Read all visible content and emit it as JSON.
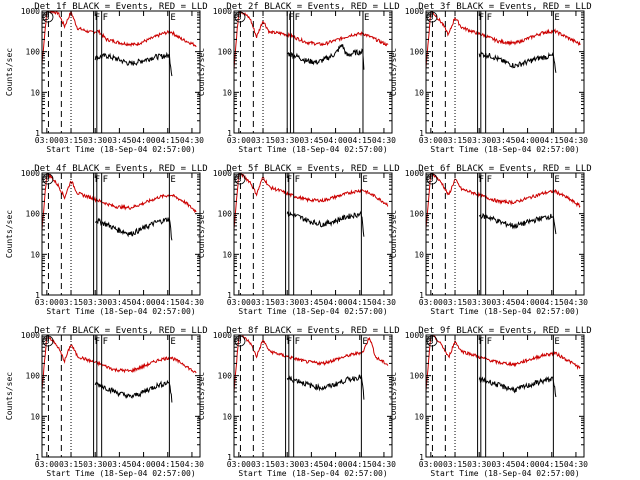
{
  "chart_data": {
    "type": "line",
    "y_scale": "log",
    "ylim": [
      1,
      1000
    ],
    "ylabel": "Counts/sec",
    "y_ticks": [
      "1",
      "10",
      "100",
      "1000"
    ],
    "x_ticks": [
      "03:00",
      "03:15",
      "03:30",
      "03:45",
      "04:00",
      "04:15",
      "04:30"
    ],
    "xlabel": "Start Time (18-Sep-04 02:57:00)",
    "x_range_minutes": [
      0,
      98
    ],
    "x_tick_minutes": [
      3,
      18,
      33,
      48,
      63,
      78,
      93
    ],
    "colors": {
      "events": "#000000",
      "lld": "#cc0000"
    },
    "series_note": "BLACK = Events, RED = LLD",
    "panels": [
      {
        "title": "Det 1f BLACK = Events, RED = LLD",
        "lld": [
          [
            0,
            50
          ],
          [
            3,
            1000
          ],
          [
            5,
            1000
          ],
          [
            10,
            900
          ],
          [
            14,
            420
          ],
          [
            18,
            950
          ],
          [
            22,
            380
          ],
          [
            30,
            300
          ],
          [
            35,
            320
          ],
          [
            40,
            200
          ],
          [
            50,
            160
          ],
          [
            58,
            150
          ],
          [
            65,
            190
          ],
          [
            75,
            280
          ],
          [
            80,
            310
          ],
          [
            86,
            210
          ],
          [
            96,
            140
          ]
        ],
        "events": [
          [
            33,
            70
          ],
          [
            40,
            80
          ],
          [
            47,
            65
          ],
          [
            55,
            50
          ],
          [
            62,
            60
          ],
          [
            70,
            75
          ],
          [
            79,
            80
          ],
          [
            80,
            40
          ],
          [
            81,
            20
          ]
        ],
        "marker_minutes": {
          "dash": [
            4,
            12
          ],
          "dot": 18,
          "solid": [
            32,
            34,
            37,
            79
          ]
        },
        "markers": [
          "S",
          "F",
          "F",
          "E"
        ]
      },
      {
        "title": "Det 2f BLACK = Events, RED = LLD",
        "lld": [
          [
            0,
            40
          ],
          [
            3,
            1000
          ],
          [
            5,
            950
          ],
          [
            10,
            650
          ],
          [
            14,
            230
          ],
          [
            18,
            580
          ],
          [
            22,
            300
          ],
          [
            30,
            280
          ],
          [
            35,
            250
          ],
          [
            45,
            170
          ],
          [
            55,
            150
          ],
          [
            63,
            190
          ],
          [
            73,
            260
          ],
          [
            80,
            280
          ],
          [
            88,
            200
          ],
          [
            96,
            140
          ]
        ],
        "events": [
          [
            33,
            90
          ],
          [
            38,
            80
          ],
          [
            45,
            60
          ],
          [
            52,
            55
          ],
          [
            58,
            70
          ],
          [
            63,
            90
          ],
          [
            67,
            150
          ],
          [
            70,
            80
          ],
          [
            75,
            95
          ],
          [
            80,
            100
          ],
          [
            81,
            20
          ]
        ],
        "marker_minutes": {
          "dash": [
            4,
            12
          ],
          "dot": 18,
          "solid": [
            33,
            35,
            37,
            80
          ]
        },
        "markers": [
          "S",
          "F",
          "F",
          "E"
        ]
      },
      {
        "title": "Det 3f BLACK = Events, RED = LLD",
        "lld": [
          [
            0,
            40
          ],
          [
            3,
            1000
          ],
          [
            5,
            850
          ],
          [
            10,
            500
          ],
          [
            14,
            260
          ],
          [
            18,
            700
          ],
          [
            22,
            400
          ],
          [
            30,
            300
          ],
          [
            35,
            260
          ],
          [
            45,
            180
          ],
          [
            55,
            160
          ],
          [
            63,
            210
          ],
          [
            73,
            300
          ],
          [
            80,
            320
          ],
          [
            88,
            220
          ],
          [
            96,
            150
          ]
        ],
        "events": [
          [
            33,
            90
          ],
          [
            40,
            80
          ],
          [
            47,
            60
          ],
          [
            55,
            45
          ],
          [
            62,
            55
          ],
          [
            70,
            70
          ],
          [
            79,
            80
          ],
          [
            80,
            40
          ],
          [
            81,
            20
          ]
        ],
        "marker_minutes": {
          "dash": [
            4,
            12
          ],
          "dot": 18,
          "solid": [
            32,
            34,
            37,
            79
          ]
        },
        "markers": [
          "S",
          "F",
          "F",
          "E"
        ]
      },
      {
        "title": "Det 4f BLACK = Events, RED = LLD",
        "lld": [
          [
            0,
            40
          ],
          [
            3,
            1000
          ],
          [
            5,
            850
          ],
          [
            10,
            500
          ],
          [
            14,
            250
          ],
          [
            18,
            650
          ],
          [
            22,
            320
          ],
          [
            30,
            250
          ],
          [
            35,
            210
          ],
          [
            45,
            150
          ],
          [
            55,
            140
          ],
          [
            63,
            180
          ],
          [
            73,
            260
          ],
          [
            80,
            290
          ],
          [
            88,
            200
          ],
          [
            96,
            110
          ]
        ],
        "events": [
          [
            33,
            70
          ],
          [
            40,
            55
          ],
          [
            47,
            40
          ],
          [
            55,
            32
          ],
          [
            62,
            42
          ],
          [
            70,
            60
          ],
          [
            79,
            75
          ],
          [
            80,
            35
          ],
          [
            81,
            18
          ]
        ],
        "marker_minutes": {
          "dash": [
            4,
            12
          ],
          "dot": 18,
          "solid": [
            32,
            34,
            37,
            79
          ]
        },
        "markers": [
          "S",
          "F",
          "F",
          "E"
        ]
      },
      {
        "title": "Det 5f BLACK = Events, RED = LLD",
        "lld": [
          [
            0,
            40
          ],
          [
            3,
            1000
          ],
          [
            5,
            900
          ],
          [
            10,
            600
          ],
          [
            14,
            300
          ],
          [
            18,
            800
          ],
          [
            22,
            450
          ],
          [
            30,
            350
          ],
          [
            35,
            290
          ],
          [
            45,
            220
          ],
          [
            55,
            210
          ],
          [
            63,
            260
          ],
          [
            73,
            340
          ],
          [
            80,
            380
          ],
          [
            88,
            260
          ],
          [
            96,
            160
          ]
        ],
        "events": [
          [
            33,
            100
          ],
          [
            40,
            85
          ],
          [
            47,
            65
          ],
          [
            55,
            55
          ],
          [
            62,
            65
          ],
          [
            70,
            85
          ],
          [
            79,
            100
          ],
          [
            80,
            50
          ],
          [
            81,
            20
          ]
        ],
        "marker_minutes": {
          "dash": [
            4,
            12
          ],
          "dot": 18,
          "solid": [
            32,
            34,
            37,
            79
          ]
        },
        "markers": [
          "S",
          "F",
          "F",
          "E"
        ]
      },
      {
        "title": "Det 6f BLACK = Events, RED = LLD",
        "lld": [
          [
            0,
            40
          ],
          [
            3,
            1000
          ],
          [
            5,
            900
          ],
          [
            10,
            550
          ],
          [
            14,
            280
          ],
          [
            18,
            700
          ],
          [
            22,
            400
          ],
          [
            30,
            320
          ],
          [
            35,
            270
          ],
          [
            45,
            200
          ],
          [
            55,
            190
          ],
          [
            63,
            240
          ],
          [
            73,
            320
          ],
          [
            80,
            360
          ],
          [
            88,
            240
          ],
          [
            96,
            150
          ]
        ],
        "events": [
          [
            33,
            90
          ],
          [
            40,
            80
          ],
          [
            47,
            60
          ],
          [
            55,
            50
          ],
          [
            62,
            60
          ],
          [
            70,
            75
          ],
          [
            79,
            90
          ],
          [
            80,
            45
          ],
          [
            81,
            20
          ]
        ],
        "marker_minutes": {
          "dash": [
            4,
            12
          ],
          "dot": 18,
          "solid": [
            32,
            34,
            37,
            79
          ]
        },
        "markers": [
          "S",
          "F",
          "F",
          "E"
        ]
      },
      {
        "title": "Det 7f BLACK = Events, RED = LLD",
        "lld": [
          [
            0,
            40
          ],
          [
            3,
            1000
          ],
          [
            5,
            850
          ],
          [
            10,
            500
          ],
          [
            14,
            230
          ],
          [
            18,
            600
          ],
          [
            22,
            300
          ],
          [
            30,
            230
          ],
          [
            35,
            200
          ],
          [
            45,
            140
          ],
          [
            55,
            130
          ],
          [
            63,
            170
          ],
          [
            73,
            250
          ],
          [
            80,
            280
          ],
          [
            88,
            190
          ],
          [
            96,
            110
          ]
        ],
        "events": [
          [
            33,
            65
          ],
          [
            40,
            50
          ],
          [
            47,
            38
          ],
          [
            55,
            30
          ],
          [
            62,
            38
          ],
          [
            70,
            55
          ],
          [
            79,
            70
          ],
          [
            80,
            35
          ],
          [
            81,
            18
          ]
        ],
        "marker_minutes": {
          "dash": [
            4,
            12
          ],
          "dot": 18,
          "solid": [
            32,
            34,
            37,
            79
          ]
        },
        "markers": [
          "S",
          "F",
          "F",
          "E"
        ]
      },
      {
        "title": "Det 8f BLACK = Events, RED = LLD",
        "lld": [
          [
            0,
            40
          ],
          [
            3,
            1000
          ],
          [
            5,
            950
          ],
          [
            10,
            650
          ],
          [
            14,
            300
          ],
          [
            18,
            750
          ],
          [
            22,
            400
          ],
          [
            30,
            320
          ],
          [
            35,
            280
          ],
          [
            45,
            220
          ],
          [
            55,
            200
          ],
          [
            63,
            250
          ],
          [
            73,
            330
          ],
          [
            80,
            380
          ],
          [
            84,
            900
          ],
          [
            88,
            280
          ],
          [
            96,
            180
          ]
        ],
        "events": [
          [
            33,
            85
          ],
          [
            40,
            75
          ],
          [
            47,
            58
          ],
          [
            55,
            50
          ],
          [
            62,
            60
          ],
          [
            70,
            80
          ],
          [
            79,
            95
          ],
          [
            80,
            45
          ],
          [
            81,
            20
          ]
        ],
        "marker_minutes": {
          "dash": [
            4,
            12
          ],
          "dot": 18,
          "solid": [
            32,
            34,
            37,
            79
          ]
        },
        "markers": [
          "S",
          "F",
          "F",
          "E"
        ]
      },
      {
        "title": "Det 9f BLACK = Events, RED = LLD",
        "lld": [
          [
            0,
            40
          ],
          [
            3,
            1000
          ],
          [
            5,
            900
          ],
          [
            10,
            550
          ],
          [
            14,
            280
          ],
          [
            18,
            700
          ],
          [
            22,
            400
          ],
          [
            30,
            320
          ],
          [
            35,
            270
          ],
          [
            45,
            210
          ],
          [
            55,
            190
          ],
          [
            63,
            240
          ],
          [
            73,
            320
          ],
          [
            80,
            360
          ],
          [
            88,
            240
          ],
          [
            96,
            150
          ]
        ],
        "events": [
          [
            33,
            80
          ],
          [
            40,
            70
          ],
          [
            47,
            55
          ],
          [
            55,
            45
          ],
          [
            62,
            55
          ],
          [
            70,
            70
          ],
          [
            79,
            85
          ],
          [
            80,
            40
          ],
          [
            81,
            20
          ]
        ],
        "marker_minutes": {
          "dash": [
            4,
            12
          ],
          "dot": 18,
          "solid": [
            32,
            34,
            37,
            79
          ]
        },
        "markers": [
          "S",
          "F",
          "F",
          "E"
        ]
      }
    ]
  }
}
